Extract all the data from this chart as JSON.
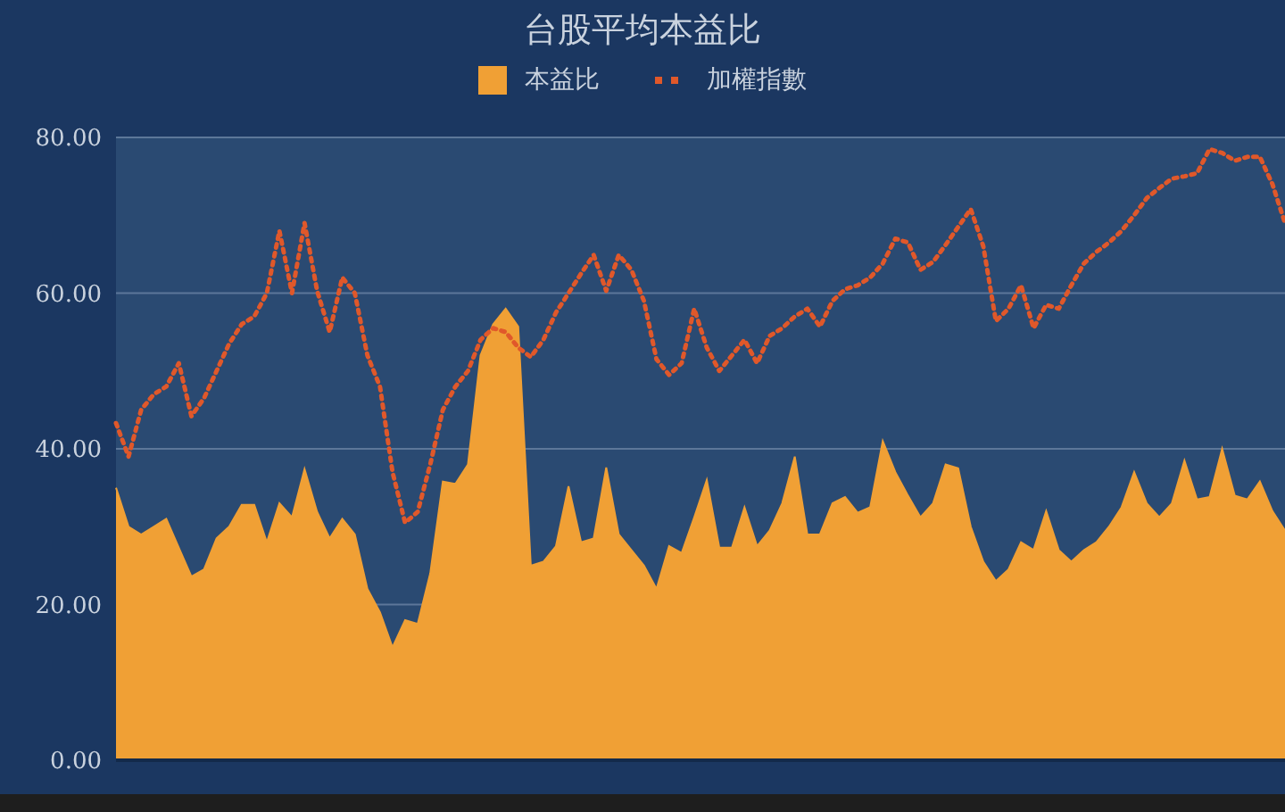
{
  "chart_data": {
    "type": "area",
    "title": "台股平均本益比",
    "categories": [
      null,
      null,
      null,
      null,
      null,
      null,
      null,
      null,
      null,
      null,
      null,
      null,
      null,
      null,
      null,
      null,
      null,
      null,
      null,
      null,
      null,
      null,
      null,
      null,
      null,
      null,
      null,
      null,
      null,
      null,
      null,
      null,
      null,
      null,
      null,
      null,
      null,
      null,
      null,
      null,
      null,
      null,
      null,
      null,
      null,
      null,
      null,
      null,
      null,
      null,
      null,
      null,
      null,
      null,
      null,
      null,
      null,
      null,
      null,
      null,
      null,
      null,
      null,
      null,
      null,
      null,
      null,
      null,
      null,
      null,
      null,
      null,
      null,
      null,
      null,
      null,
      null,
      null,
      null,
      null,
      null,
      null,
      null,
      null,
      null,
      null,
      null,
      null,
      null,
      null,
      null,
      null,
      null,
      null
    ],
    "series": [
      {
        "name": "本益比",
        "color": "#f0a035",
        "values": [
          35,
          30,
          29,
          30,
          31,
          27.3,
          23.6,
          24.5,
          28.5,
          30,
          32.8,
          32.8,
          28,
          33,
          31.2,
          37.4,
          31.9,
          28.5,
          31,
          29,
          22,
          19,
          14.5,
          18,
          17.5,
          24,
          35.8,
          35.5,
          38,
          52,
          56,
          58,
          55.7,
          25,
          25.5,
          27.5,
          35.2,
          28,
          28.5,
          37.6,
          29,
          27,
          25,
          22,
          27.5,
          26.6,
          31.2,
          36,
          27.3,
          27.3,
          32.5,
          27.5,
          29.5,
          33,
          39,
          29,
          29,
          33,
          33.8,
          31.8,
          32.5,
          41,
          37,
          34,
          31.2,
          33,
          38,
          37.5,
          30,
          25.5,
          23,
          24.5,
          28,
          27,
          32,
          27,
          25.5,
          27,
          28,
          30,
          32.5,
          37,
          33,
          31.2,
          33,
          38.5,
          33.5,
          33.8,
          40,
          34,
          33.5,
          35.8,
          32,
          29.5
        ]
      },
      {
        "name": "加權指數",
        "type": "line",
        "line_style": "dotted",
        "color": "#e0582a",
        "values": [
          43.3,
          39,
          45,
          47,
          48,
          51,
          44.2,
          46.5,
          50,
          53.5,
          56,
          57,
          60,
          68,
          60,
          69,
          60.3,
          55,
          62,
          60,
          52,
          48,
          37,
          30.5,
          31.9,
          38,
          45,
          48,
          50,
          54,
          55.5,
          55,
          53,
          51.8,
          54,
          57.5,
          60,
          62.5,
          64.9,
          60.3,
          64.9,
          63,
          59,
          51.5,
          49.5,
          51,
          58,
          53,
          50,
          52,
          54,
          51,
          54.5,
          55.5,
          57,
          58,
          55.7,
          59,
          60.5,
          61,
          62,
          63.8,
          67,
          66.5,
          63,
          64,
          66.2,
          68.5,
          70.8,
          66,
          56.4,
          58,
          61,
          55.5,
          58.5,
          58,
          61,
          63.8,
          65.3,
          66.5,
          68,
          70,
          72.2,
          73.5,
          74.7,
          75,
          75.4,
          78.5,
          78,
          77,
          77.5,
          77.5,
          74,
          69
        ]
      }
    ],
    "ylim": [
      0,
      80
    ],
    "yticks": [
      {
        "value": 0,
        "label": "0.00"
      },
      {
        "value": 20,
        "label": "20.00"
      },
      {
        "value": 40,
        "label": "40.00"
      },
      {
        "value": 60,
        "label": "60.00"
      },
      {
        "value": 80,
        "label": "80.00"
      }
    ],
    "grid": "y",
    "legend": "top",
    "tick_labels": "y"
  }
}
